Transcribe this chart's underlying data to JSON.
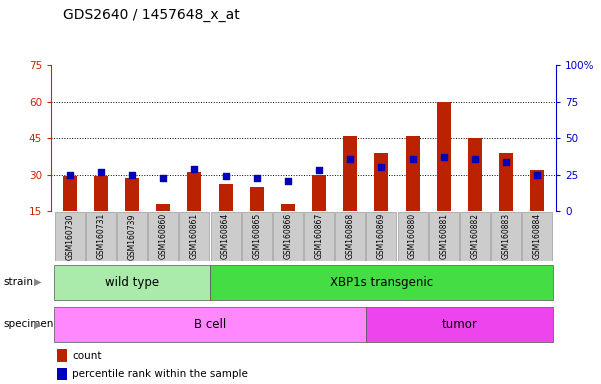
{
  "title": "GDS2640 / 1457648_x_at",
  "samples": [
    "GSM160730",
    "GSM160731",
    "GSM160739",
    "GSM160860",
    "GSM160861",
    "GSM160864",
    "GSM160865",
    "GSM160866",
    "GSM160867",
    "GSM160868",
    "GSM160869",
    "GSM160880",
    "GSM160881",
    "GSM160882",
    "GSM160883",
    "GSM160884"
  ],
  "counts": [
    29.5,
    29.5,
    28.5,
    18,
    31,
    26,
    25,
    18,
    30,
    46,
    39,
    46,
    60,
    45,
    39,
    32
  ],
  "percentile_ranks": [
    25,
    27,
    25,
    23,
    29,
    24,
    23,
    21,
    28,
    36,
    30,
    36,
    37,
    36,
    34,
    25
  ],
  "strain_groups": [
    {
      "label": "wild type",
      "start": 0,
      "end": 5,
      "color": "#aaeaaa"
    },
    {
      "label": "XBP1s transgenic",
      "start": 5,
      "end": 16,
      "color": "#44dd44"
    }
  ],
  "specimen_groups": [
    {
      "label": "B cell",
      "start": 0,
      "end": 10,
      "color": "#ff88ff"
    },
    {
      "label": "tumor",
      "start": 10,
      "end": 16,
      "color": "#ee44ee"
    }
  ],
  "ylim_left": [
    15,
    75
  ],
  "ylim_right": [
    0,
    100
  ],
  "yticks_left": [
    15,
    30,
    45,
    60,
    75
  ],
  "yticks_right": [
    0,
    25,
    50,
    75,
    100
  ],
  "ytick_labels_left": [
    "15",
    "30",
    "45",
    "60",
    "75"
  ],
  "ytick_labels_right": [
    "0",
    "25",
    "50",
    "75",
    "100%"
  ],
  "bar_color": "#bb2200",
  "dot_color": "#0000bb",
  "bar_width": 0.45,
  "grid_color": "#000000",
  "bg_color": "#ffffff",
  "plot_bg_color": "#ffffff",
  "xticklabel_bg": "#cccccc",
  "title_fontsize": 10,
  "tick_fontsize": 7.5,
  "label_fontsize": 8.5,
  "annotation_fontsize": 7.5,
  "xtick_fontsize": 5.5,
  "left_tick_color": "#cc2200",
  "right_tick_color": "#0000cc"
}
